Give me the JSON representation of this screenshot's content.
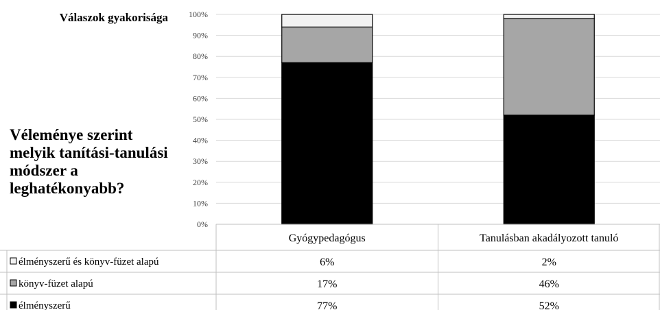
{
  "y_axis_title": "Válaszok gyakorisága",
  "question": "Véleménye szerint melyik tanítási-tanulási módszer a leghatékonyabb?",
  "chart_data": {
    "type": "bar",
    "stacked": true,
    "categories": [
      "Gyógypedagógus",
      "Tanulásban akadályozott tanuló"
    ],
    "series": [
      {
        "name": "élményszerű",
        "values": [
          77,
          52
        ],
        "labels": [
          "77%",
          "52%"
        ],
        "color": "#000000"
      },
      {
        "name": "könyv-füzet alapú",
        "values": [
          17,
          46
        ],
        "labels": [
          "17%",
          "46%"
        ],
        "color": "#a6a6a6"
      },
      {
        "name": "élményszerű és könyv-füzet alapú",
        "values": [
          6,
          2
        ],
        "labels": [
          "6%",
          "2%"
        ],
        "color": "#f2f2f2"
      }
    ],
    "yticks": [
      "0%",
      "10%",
      "20%",
      "30%",
      "40%",
      "50%",
      "60%",
      "70%",
      "80%",
      "90%",
      "100%"
    ],
    "ylim": [
      0,
      100
    ],
    "grid": true,
    "data_table": true,
    "table_rows_order": [
      "élményszerű és könyv-füzet alapú",
      "könyv-füzet alapú",
      "élményszerű"
    ]
  }
}
